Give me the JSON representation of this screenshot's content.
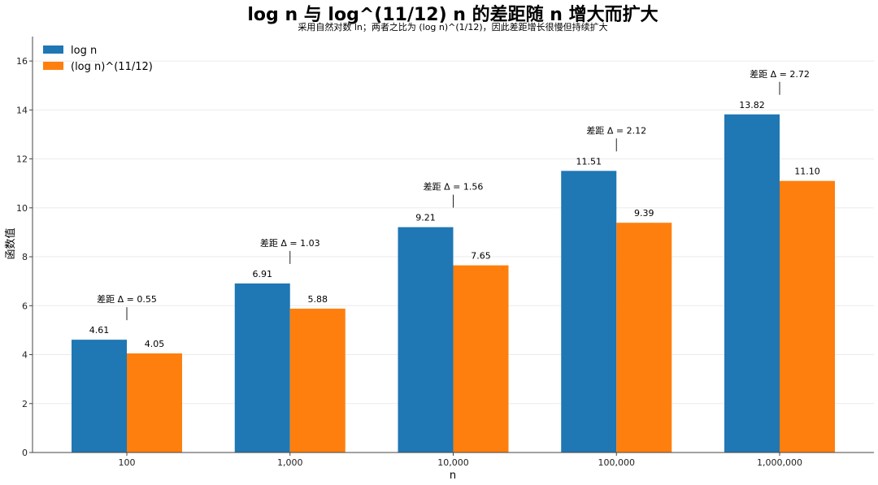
{
  "chart_data": {
    "type": "bar",
    "title": "log n 与 log^(11/12) n 的差距随 n 增大而扩大",
    "subtitle": "采用自然对数 ln；两者之比为 (log n)^(1/12)，因此差距增长很慢但持续扩大",
    "xlabel": "n",
    "ylabel": "函数值",
    "ylim": [
      0,
      17
    ],
    "yticks": [
      0,
      2,
      4,
      6,
      8,
      10,
      12,
      14,
      16
    ],
    "categories": [
      "100",
      "1,000",
      "10,000",
      "100,000",
      "1,000,000"
    ],
    "series": [
      {
        "name": "log n",
        "color": "#1f77b4",
        "values": [
          4.61,
          6.91,
          9.21,
          11.51,
          13.82
        ],
        "labels": [
          "4.61",
          "6.91",
          "9.21",
          "11.51",
          "13.82"
        ]
      },
      {
        "name": "(log n)^(11/12)",
        "color": "#ff7f0e",
        "values": [
          4.05,
          5.88,
          7.65,
          9.39,
          11.1
        ],
        "labels": [
          "4.05",
          "5.88",
          "7.65",
          "9.39",
          "11.10"
        ]
      }
    ],
    "annotations": [
      "差距 Δ = 0.55",
      "差距 Δ = 1.03",
      "差距 Δ = 1.56",
      "差距 Δ = 2.12",
      "差距 Δ = 2.72"
    ],
    "legend_position": "top-left",
    "grid": "horizontal, light"
  }
}
